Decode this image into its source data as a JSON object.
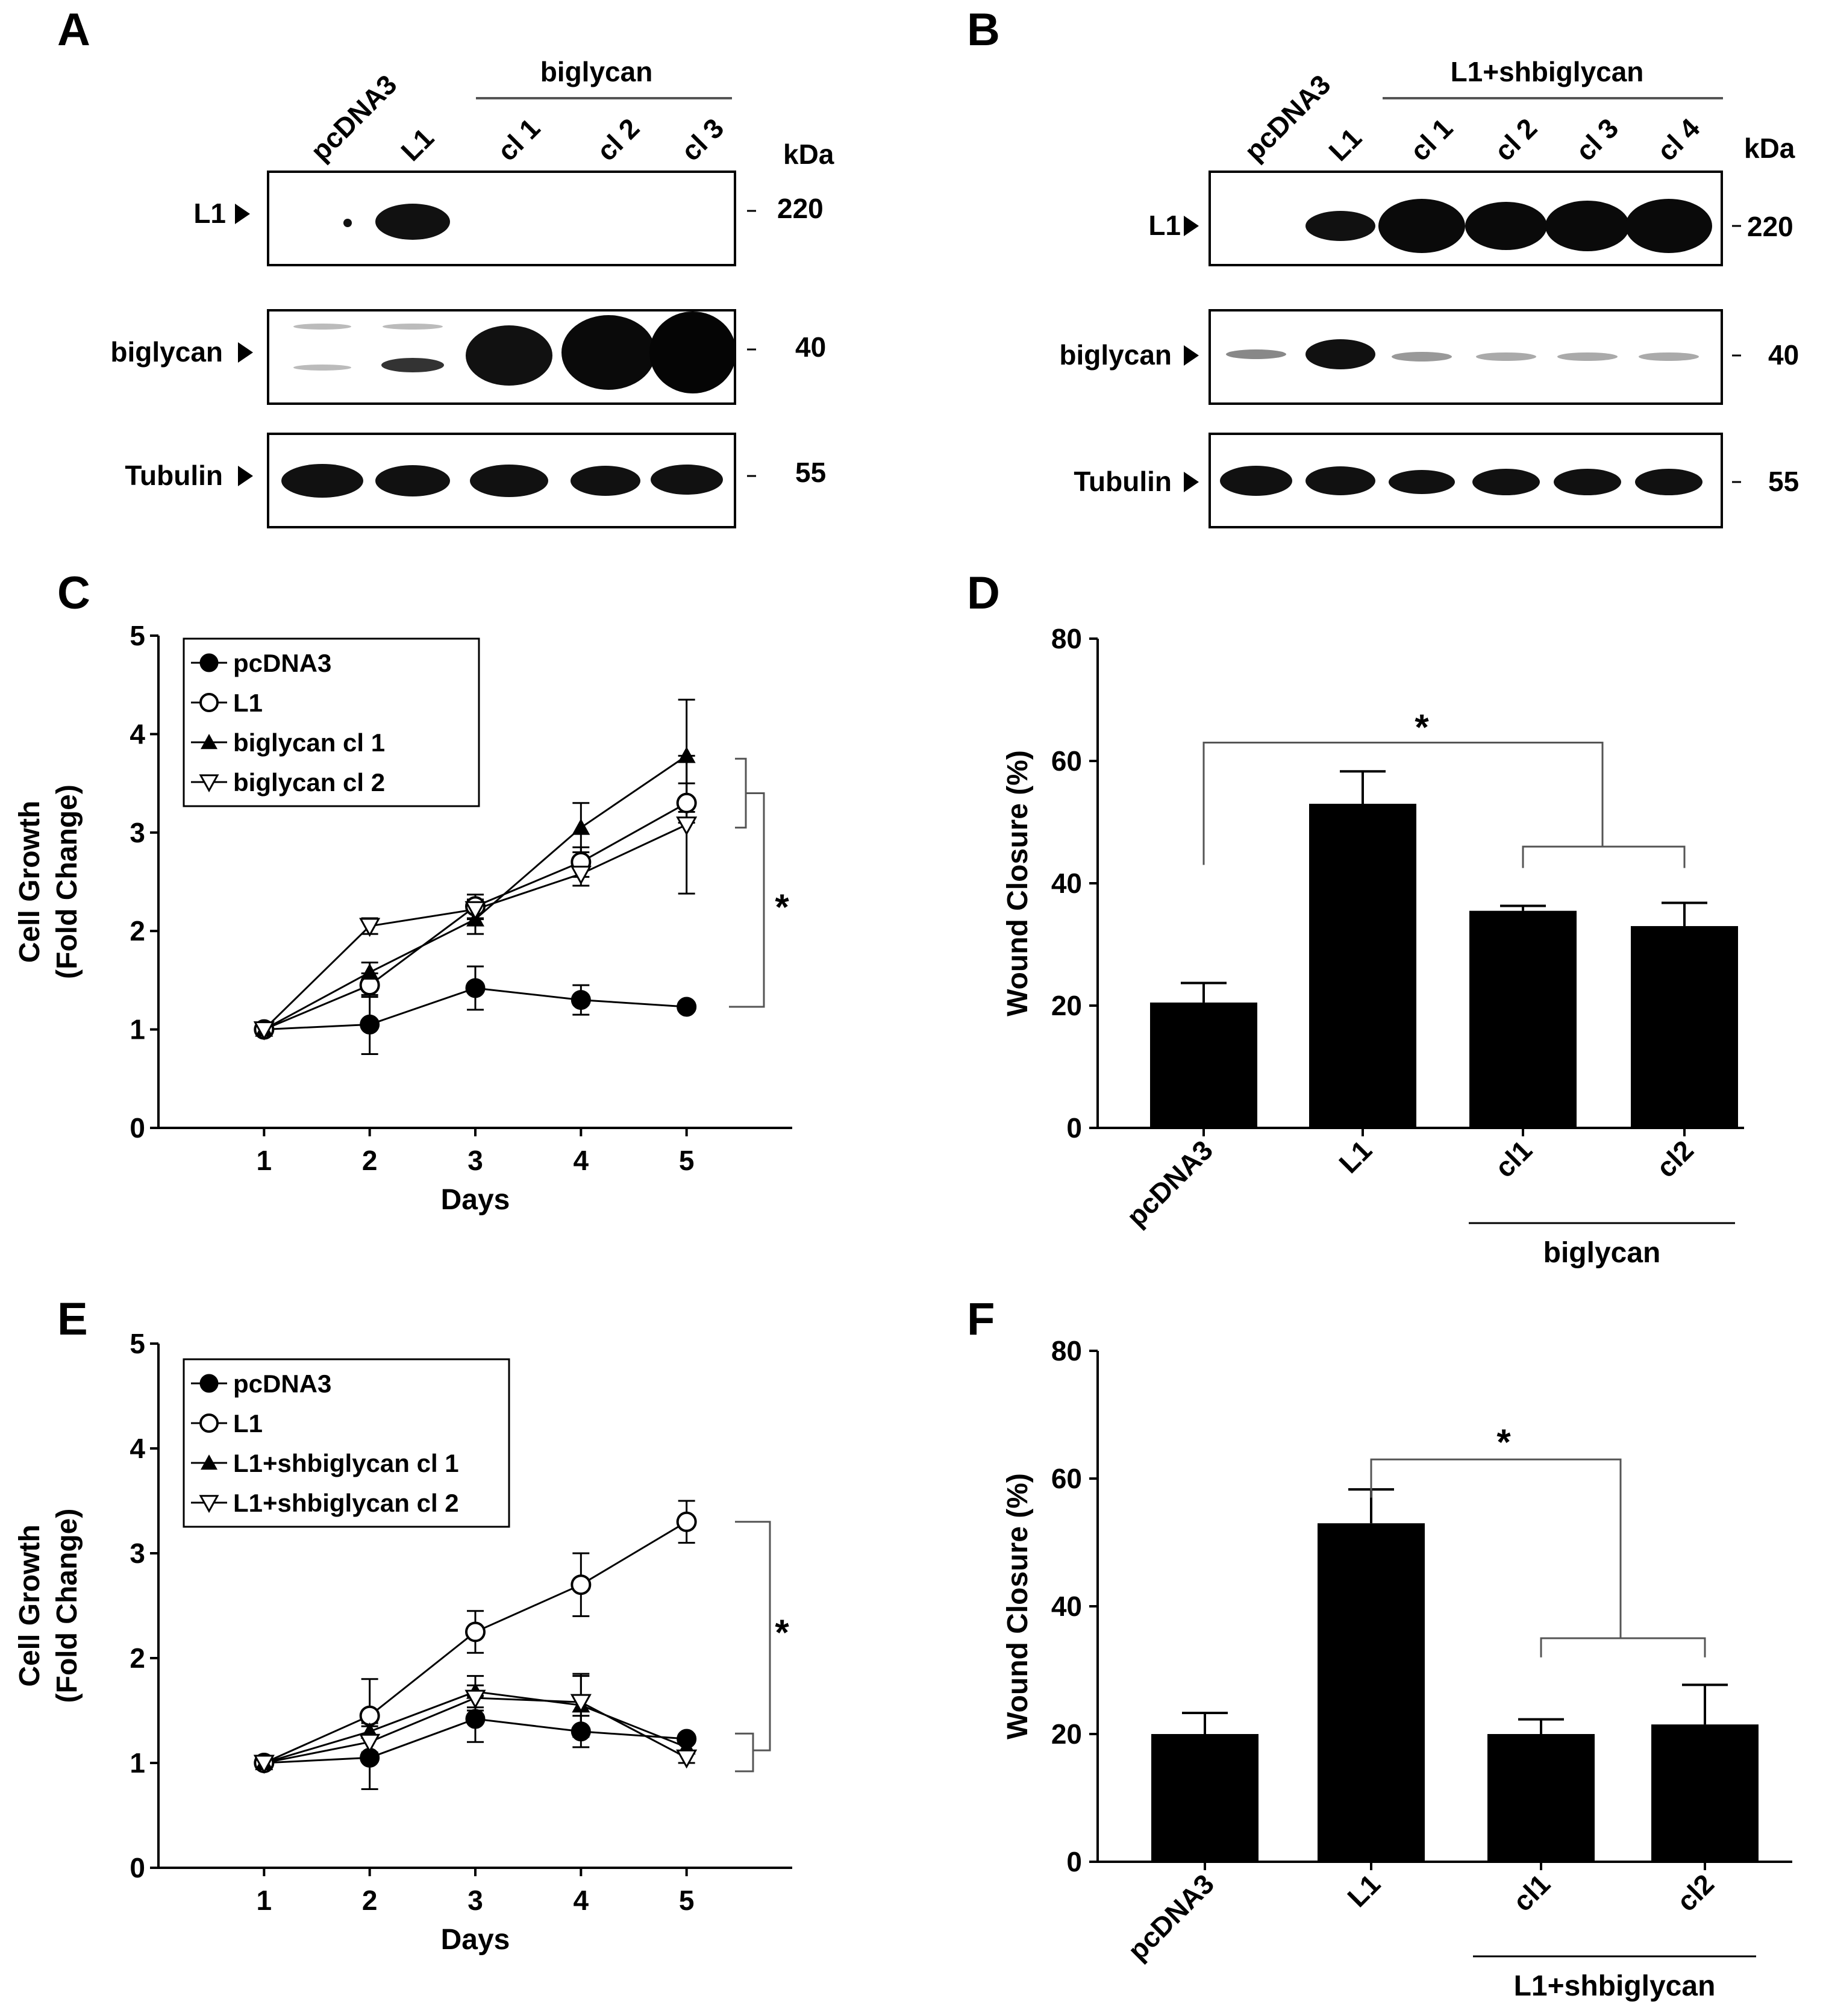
{
  "panels": {
    "A": "A",
    "B": "B",
    "C": "C",
    "D": "D",
    "E": "E",
    "F": "F"
  },
  "blot_a": {
    "lanes": [
      "pcDNA3",
      "L1",
      "cl 1",
      "cl 2",
      "cl 3"
    ],
    "group_label": "biglycan",
    "kda_label": "kDa",
    "rows": [
      {
        "label": "L1",
        "kda": "220"
      },
      {
        "label": "biglycan",
        "kda": "40"
      },
      {
        "label": "Tubulin",
        "kda": "55"
      }
    ]
  },
  "blot_b": {
    "lanes": [
      "pcDNA3",
      "L1",
      "cl 1",
      "cl 2",
      "cl 3",
      "cl 4"
    ],
    "group_label": "L1+shbiglycan",
    "kda_label": "kDa",
    "rows": [
      {
        "label": "L1",
        "kda": "220"
      },
      {
        "label": "biglycan",
        "kda": "40"
      },
      {
        "label": "Tubulin",
        "kda": "55"
      }
    ]
  },
  "chart_data": [
    {
      "panel": "C",
      "type": "line",
      "xlabel": "Days",
      "ylabel": "Cell Growth",
      "ylabel2": "(Fold Change)",
      "x": [
        1,
        2,
        3,
        4,
        5
      ],
      "xlim": [
        0,
        6
      ],
      "ylim": [
        0,
        5
      ],
      "yticks": [
        0,
        1,
        2,
        3,
        4,
        5
      ],
      "legend_position": "top-left",
      "series": [
        {
          "name": "pcDNA3",
          "marker": "filled-circle",
          "values": [
            1.0,
            1.05,
            1.42,
            1.3,
            1.23
          ],
          "errors": [
            0.05,
            0.3,
            0.22,
            0.15,
            0.04
          ]
        },
        {
          "name": "L1",
          "marker": "open-circle",
          "values": [
            1.0,
            1.45,
            2.25,
            2.7,
            3.3
          ],
          "errors": [
            0.05,
            0.12,
            0.12,
            0.15,
            0.2
          ]
        },
        {
          "name": "biglycan cl 1",
          "marker": "filled-triangle",
          "values": [
            1.0,
            1.58,
            2.12,
            3.05,
            3.78
          ],
          "errors": [
            0.05,
            0.1,
            0.15,
            0.25,
            0.57
          ]
        },
        {
          "name": "biglycan cl 2",
          "marker": "open-triangle-down",
          "values": [
            1.0,
            2.05,
            2.22,
            2.58,
            3.08
          ],
          "errors": [
            0.05,
            0.08,
            0.1,
            0.12,
            0.7
          ]
        }
      ],
      "significance": "*"
    },
    {
      "panel": "D",
      "type": "bar",
      "ylabel": "Wound Closure (%)",
      "ylim": [
        0,
        80
      ],
      "yticks": [
        0,
        20,
        40,
        60,
        80
      ],
      "categories": [
        "pcDNA3",
        "L1",
        "cl1",
        "cl2"
      ],
      "values": [
        20.5,
        53,
        35.5,
        33
      ],
      "errors": [
        3.2,
        5.3,
        0.8,
        3.8
      ],
      "group_label": "biglycan",
      "significance": "*"
    },
    {
      "panel": "E",
      "type": "line",
      "xlabel": "Days",
      "ylabel": "Cell Growth",
      "ylabel2": "(Fold Change)",
      "x": [
        1,
        2,
        3,
        4,
        5
      ],
      "xlim": [
        0,
        6
      ],
      "ylim": [
        0,
        5
      ],
      "yticks": [
        0,
        1,
        2,
        3,
        4,
        5
      ],
      "legend_position": "top-left",
      "series": [
        {
          "name": "pcDNA3",
          "marker": "filled-circle",
          "values": [
            1.0,
            1.05,
            1.42,
            1.3,
            1.23
          ],
          "errors": [
            0.05,
            0.3,
            0.22,
            0.15,
            0.04
          ]
        },
        {
          "name": "L1",
          "marker": "open-circle",
          "values": [
            1.0,
            1.45,
            2.25,
            2.7,
            3.3
          ],
          "errors": [
            0.05,
            0.35,
            0.2,
            0.3,
            0.2
          ]
        },
        {
          "name": "L1+shbiglycan cl 1",
          "marker": "filled-triangle",
          "values": [
            1.0,
            1.3,
            1.68,
            1.55,
            1.15
          ],
          "errors": [
            0.05,
            0.2,
            0.15,
            0.3,
            0.05
          ]
        },
        {
          "name": "L1+shbiglycan cl 2",
          "marker": "open-triangle-down",
          "values": [
            1.0,
            1.2,
            1.62,
            1.58,
            1.05
          ],
          "errors": [
            0.05,
            0.18,
            0.12,
            0.25,
            0.05
          ]
        }
      ],
      "significance": "*"
    },
    {
      "panel": "F",
      "type": "bar",
      "ylabel": "Wound Closure (%)",
      "ylim": [
        0,
        80
      ],
      "yticks": [
        0,
        20,
        40,
        60,
        80
      ],
      "categories": [
        "pcDNA3",
        "L1",
        "cl1",
        "cl2"
      ],
      "values": [
        20,
        53,
        20,
        21.5
      ],
      "errors": [
        3.3,
        5.3,
        2.3,
        6.2
      ],
      "group_label": "L1+shbiglycan",
      "significance": "*"
    }
  ]
}
